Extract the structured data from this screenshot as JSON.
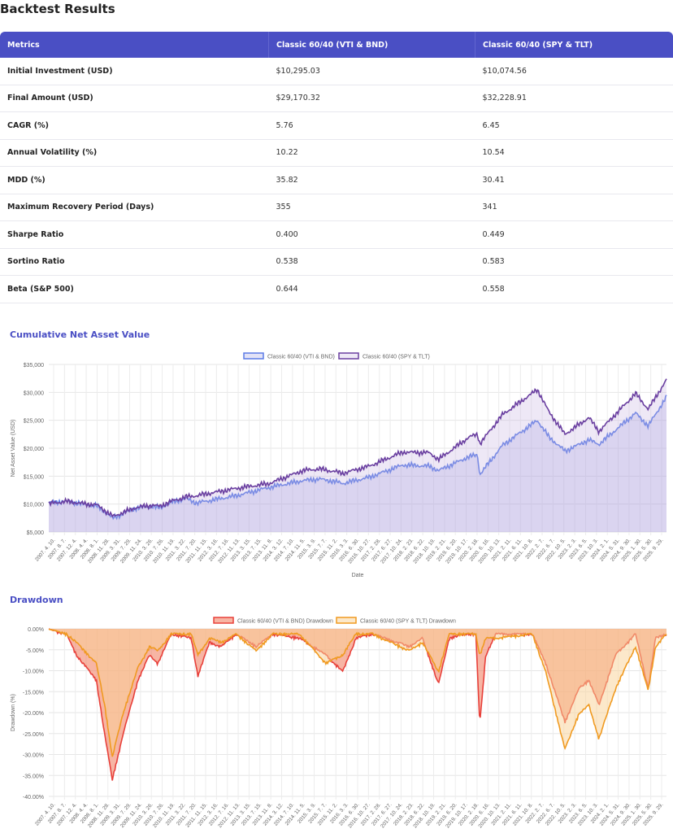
{
  "title": "Backtest Results",
  "table": {
    "headers": [
      "Metrics",
      "Classic 60/40 (VTI & BND)",
      "Classic 60/40 (SPY & TLT)"
    ],
    "rows": [
      [
        "Initial Investment (USD)",
        "$10,295.03",
        "$10,074.56"
      ],
      [
        "Final Amount (USD)",
        "$29,170.32",
        "$32,228.91"
      ],
      [
        "CAGR (%)",
        "5.76",
        "6.45"
      ],
      [
        "Annual Volatility (%)",
        "10.22",
        "10.54"
      ],
      [
        "MDD (%)",
        "35.82",
        "30.41"
      ],
      [
        "Maximum Recovery Period (Days)",
        "355",
        "341"
      ],
      [
        "Sharpe Ratio",
        "0.400",
        "0.449"
      ],
      [
        "Sortino Ratio",
        "0.538",
        "0.583"
      ],
      [
        "Beta (S&P 500)",
        "0.644",
        "0.558"
      ]
    ]
  },
  "x_tick_labels": [
    "2007. 4. 10.",
    "2007. 8. 7.",
    "2007. 12. 4.",
    "2008. 4. 4.",
    "2008. 8. 1.",
    "2008. 11. 28.",
    "2009. 3. 31.",
    "2009. 7. 29.",
    "2009. 11. 24.",
    "2010. 3. 26.",
    "2010. 7. 26.",
    "2010. 11. 19.",
    "2011. 3. 22.",
    "2011. 7. 20.",
    "2011. 11. 15.",
    "2012. 3. 16.",
    "2012. 7. 16.",
    "2012. 11. 13.",
    "2013. 3. 15.",
    "2013. 7. 15.",
    "2013. 11. 8.",
    "2014. 3. 12.",
    "2014. 7. 10.",
    "2014. 11. 5.",
    "2015. 3. 9.",
    "2015. 7. 7.",
    "2015. 11. 2.",
    "2016. 3. 3.",
    "2016. 6. 30.",
    "2016. 10. 27.",
    "2017. 2. 28.",
    "2017. 6. 27.",
    "2017. 10. 24.",
    "2018. 2. 23.",
    "2018. 6. 22.",
    "2018. 10. 19.",
    "2019. 2. 21.",
    "2019. 6. 20.",
    "2019. 10. 17.",
    "2020. 2. 18.",
    "2020. 6. 16.",
    "2020. 10. 13.",
    "2021. 2. 11.",
    "2021. 6. 11.",
    "2021. 10. 8.",
    "2022. 2. 7.",
    "2022. 6. 7.",
    "2022. 10. 5.",
    "2023. 2. 3.",
    "2023. 6. 5.",
    "2023. 10. 3.",
    "2024. 2. 1.",
    "2024. 5. 31.",
    "2024. 9. 30.",
    "2025. 1. 30.",
    "2025. 5. 30.",
    "2025. 9. 29."
  ],
  "chart_data": [
    {
      "type": "area",
      "title": "Cumulative Net Asset Value",
      "xlabel": "Date",
      "ylabel": "Net Asset Value (USD)",
      "xrange": [
        2007.27,
        2025.83
      ],
      "ylim": [
        5000,
        35000
      ],
      "yticks": [
        "$35,000",
        "$30,000",
        "$25,000",
        "$20,000",
        "$15,000",
        "$10,000",
        "$5,000"
      ],
      "legend": "top-center",
      "series": [
        {
          "name": "Classic 60/40 (VTI & BND)",
          "color": "#5b7be6",
          "fill": "rgba(160,160,225,0.3)",
          "x": [
            2007.27,
            2007.8,
            2008.4,
            2008.7,
            2009.2,
            2009.9,
            2010.4,
            2010.6,
            2010.95,
            2011.4,
            2011.7,
            2012.9,
            2013.9,
            2014.9,
            2015.4,
            2015.9,
            2016.1,
            2016.9,
            2017.9,
            2018.7,
            2018.98,
            2019.9,
            2020.15,
            2020.22,
            2020.9,
            2021.95,
            2022.3,
            2022.78,
            2023.5,
            2023.8,
            2024.9,
            2025.28,
            2025.83
          ],
          "y": [
            10200,
            10500,
            9900,
            9700,
            7500,
            9300,
            9600,
            9300,
            10300,
            11000,
            10200,
            11500,
            13000,
            14200,
            14500,
            14000,
            13700,
            14800,
            17000,
            16800,
            16000,
            18500,
            18800,
            15300,
            20500,
            25000,
            22000,
            19500,
            21500,
            20700,
            26300,
            24000,
            29170
          ]
        },
        {
          "name": "Classic 60/40 (SPY & TLT)",
          "color": "#6a3fa0",
          "fill": "rgba(200,180,225,0.3)",
          "x": [
            2007.27,
            2007.8,
            2008.4,
            2008.7,
            2009.2,
            2009.9,
            2010.4,
            2010.6,
            2010.95,
            2011.4,
            2011.7,
            2012.9,
            2013.9,
            2014.9,
            2015.4,
            2015.9,
            2016.1,
            2016.9,
            2017.9,
            2018.7,
            2018.98,
            2019.9,
            2020.15,
            2020.22,
            2020.9,
            2021.95,
            2022.3,
            2022.78,
            2023.5,
            2023.8,
            2024.9,
            2025.28,
            2025.83
          ],
          "y": [
            10070,
            10500,
            10000,
            9900,
            7800,
            9400,
            9800,
            9600,
            10500,
            11300,
            11500,
            12800,
            13700,
            16000,
            16300,
            15800,
            15500,
            16800,
            19300,
            19200,
            18000,
            22000,
            22500,
            20800,
            26000,
            30500,
            26500,
            22500,
            25500,
            23000,
            29800,
            27000,
            32230
          ]
        }
      ]
    },
    {
      "type": "area",
      "title": "Drawdown",
      "xlabel": "",
      "ylabel": "Drawdown (%)",
      "xrange": [
        2007.27,
        2025.83
      ],
      "ylim": [
        -40,
        0
      ],
      "yticks": [
        "0.00%",
        "-5.00%",
        "-10.00%",
        "-15.00%",
        "-20.00%",
        "-25.00%",
        "-30.00%",
        "-35.00%",
        "-40.00%"
      ],
      "legend": "top-center",
      "series": [
        {
          "name": "Classic 60/40 (VTI & BND) Drawdown",
          "color": "#e8403a",
          "fill": "rgba(240,120,90,0.55)",
          "x": [
            2007.27,
            2007.8,
            2008.1,
            2008.7,
            2008.95,
            2009.18,
            2009.5,
            2009.95,
            2010.3,
            2010.55,
            2010.95,
            2011.55,
            2011.75,
            2012.1,
            2012.45,
            2012.9,
            2013.5,
            2014.0,
            2014.8,
            2015.6,
            2016.1,
            2016.5,
            2017.0,
            2018.1,
            2018.5,
            2018.98,
            2019.3,
            2019.8,
            2020.1,
            2020.22,
            2020.4,
            2020.7,
            2021.8,
            2022.2,
            2022.78,
            2023.2,
            2023.5,
            2023.8,
            2024.3,
            2024.9,
            2025.28,
            2025.5,
            2025.83
          ],
          "y": [
            0,
            -1,
            -6,
            -12,
            -25,
            -35.8,
            -25,
            -12,
            -6,
            -8,
            -1,
            -2,
            -11,
            -3,
            -4,
            -1,
            -4,
            -1,
            -2,
            -6,
            -10,
            -2,
            -1,
            -4,
            -2,
            -13,
            -2,
            -1,
            -1,
            -22.5,
            -6,
            -1,
            -1,
            -8,
            -22,
            -14,
            -12,
            -18,
            -6,
            -1,
            -14,
            -2,
            -1
          ]
        },
        {
          "name": "Classic 60/40 (SPY & TLT) Drawdown",
          "color": "#f09a20",
          "fill": "rgba(250,210,150,0.5)",
          "x": [
            2007.27,
            2007.8,
            2008.1,
            2008.7,
            2008.95,
            2009.18,
            2009.5,
            2009.95,
            2010.3,
            2010.55,
            2010.95,
            2011.55,
            2011.75,
            2012.1,
            2012.45,
            2012.9,
            2013.5,
            2014.0,
            2014.8,
            2015.6,
            2016.1,
            2016.5,
            2017.0,
            2018.1,
            2018.5,
            2018.98,
            2019.3,
            2019.8,
            2020.1,
            2020.22,
            2020.4,
            2020.7,
            2021.8,
            2022.2,
            2022.78,
            2023.2,
            2023.5,
            2023.8,
            2024.3,
            2024.9,
            2025.28,
            2025.5,
            2025.83
          ],
          "y": [
            0,
            -1,
            -3,
            -8,
            -18,
            -30.4,
            -20,
            -9,
            -4,
            -5,
            -1,
            -1,
            -6,
            -2,
            -3,
            -1,
            -5,
            -1,
            -1,
            -8,
            -6,
            -1,
            -1,
            -5,
            -3,
            -10,
            -1,
            -1,
            -1,
            -6,
            -2,
            -2,
            -1,
            -10,
            -28.5,
            -20,
            -18,
            -26,
            -14,
            -4,
            -14.5,
            -4,
            -1
          ]
        }
      ]
    }
  ]
}
